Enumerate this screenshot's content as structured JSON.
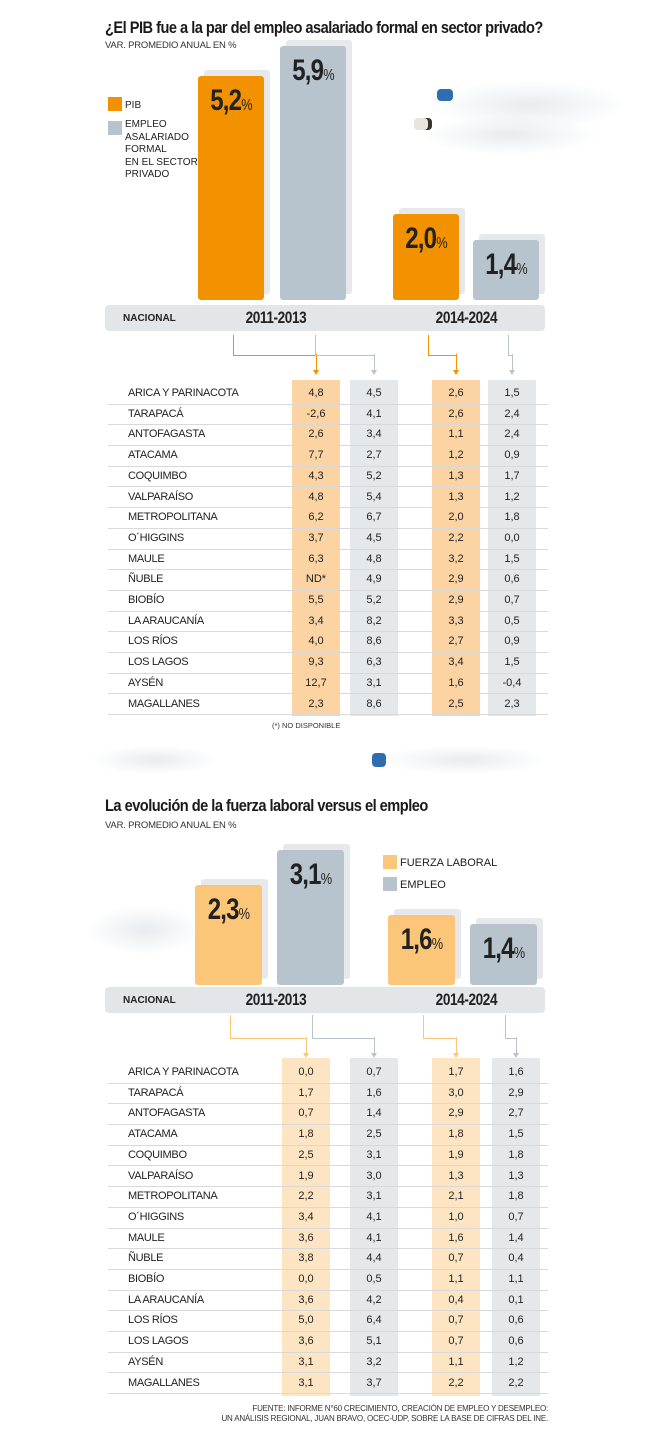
{
  "chart_data": [
    {
      "type": "bar",
      "title": "¿El PIB  fue a la par del empleo asalariado formal en sector privado?",
      "subtitle": "VAR. PROMEDIO ANUAL EN %",
      "national_label": "NACIONAL",
      "categories": [
        "2011-2013",
        "2014-2024"
      ],
      "series": [
        {
          "name": "PIB",
          "color": "#f39200",
          "band_color": "#fcd3a3",
          "values": [
            5.2,
            2.0
          ],
          "labels": [
            "5,2",
            "2,0"
          ]
        },
        {
          "name": "EMPLEO ASALARIADO FORMAL EN EL SECTOR PRIVADO",
          "color": "#b8c4cd",
          "band_color": "#e4e8eb",
          "values": [
            5.9,
            1.4
          ],
          "labels": [
            "5,9",
            "1,4"
          ]
        }
      ],
      "legend_lines": [
        "EMPLEO",
        "ASALARIADO",
        "FORMAL",
        "EN EL SECTOR",
        "PRIVADO"
      ],
      "pct_symbol": "%",
      "table": {
        "regions": [
          "ARICA Y PARINACOTA",
          "TARAPACÁ",
          "ANTOFAGASTA",
          "ATACAMA",
          "COQUIMBO",
          "VALPARAÍSO",
          "METROPOLITANA",
          "O´HIGGINS",
          "MAULE",
          "ÑUBLE",
          "BIOBÍO",
          "LA ARAUCANÍA",
          "LOS RÍOS",
          "LOS LAGOS",
          "AYSÉN",
          "MAGALLANES"
        ],
        "rows": [
          [
            "4,8",
            "4,5",
            "2,6",
            "1,5"
          ],
          [
            "-2,6",
            "4,1",
            "2,6",
            "2,4"
          ],
          [
            "2,6",
            "3,4",
            "1,1",
            "2,4"
          ],
          [
            "7,7",
            "2,7",
            "1,2",
            "0,9"
          ],
          [
            "4,3",
            "5,2",
            "1,3",
            "1,7"
          ],
          [
            "4,8",
            "5,4",
            "1,3",
            "1,2"
          ],
          [
            "6,2",
            "6,7",
            "2,0",
            "1,8"
          ],
          [
            "3,7",
            "4,5",
            "2,2",
            "0,0"
          ],
          [
            "6,3",
            "4,8",
            "3,2",
            "1,5"
          ],
          [
            "ND*",
            "4,9",
            "2,9",
            "0,6"
          ],
          [
            "5,5",
            "5,2",
            "2,9",
            "0,7"
          ],
          [
            "3,4",
            "8,2",
            "3,3",
            "0,5"
          ],
          [
            "4,0",
            "8,6",
            "2,7",
            "0,9"
          ],
          [
            "9,3",
            "6,3",
            "3,4",
            "1,5"
          ],
          [
            "12,7",
            "3,1",
            "1,6",
            "-0,4"
          ],
          [
            "2,3",
            "8,6",
            "2,5",
            "2,3"
          ]
        ]
      },
      "note": "(*) NO DISPONIBLE"
    },
    {
      "type": "bar",
      "title": "La evolución de la fuerza laboral versus el empleo",
      "subtitle": "VAR. PROMEDIO ANUAL EN %",
      "national_label": "NACIONAL",
      "categories": [
        "2011-2013",
        "2014-2024"
      ],
      "series": [
        {
          "name": "FUERZA LABORAL",
          "color": "#fbc677",
          "band_color": "#fde5c3",
          "values": [
            2.3,
            1.6
          ],
          "labels": [
            "2,3",
            "1,6"
          ]
        },
        {
          "name": "EMPLEO",
          "color": "#b8c4cd",
          "band_color": "#e4e8eb",
          "values": [
            3.1,
            1.4
          ],
          "labels": [
            "3,1",
            "1,4"
          ]
        }
      ],
      "pct_symbol": "%",
      "table": {
        "regions": [
          "ARICA Y PARINACOTA",
          "TARAPACÁ",
          "ANTOFAGASTA",
          "ATACAMA",
          "COQUIMBO",
          "VALPARAÍSO",
          "METROPOLITANA",
          "O´HIGGINS",
          "MAULE",
          "ÑUBLE",
          "BIOBÍO",
          "LA ARAUCANÍA",
          "LOS RÍOS",
          "LOS LAGOS",
          "AYSÉN",
          "MAGALLANES"
        ],
        "rows": [
          [
            "0,0",
            "0,7",
            "1,7",
            "1,6"
          ],
          [
            "1,7",
            "1,6",
            "3,0",
            "2,9"
          ],
          [
            "0,7",
            "1,4",
            "2,9",
            "2,7"
          ],
          [
            "1,8",
            "2,5",
            "1,8",
            "1,5"
          ],
          [
            "2,5",
            "3,1",
            "1,9",
            "1,8"
          ],
          [
            "1,9",
            "3,0",
            "1,3",
            "1,3"
          ],
          [
            "2,2",
            "3,1",
            "2,1",
            "1,8"
          ],
          [
            "3,4",
            "4,1",
            "1,0",
            "0,7"
          ],
          [
            "3,6",
            "4,1",
            "1,6",
            "1,4"
          ],
          [
            "3,8",
            "4,4",
            "0,7",
            "0,4"
          ],
          [
            "0,0",
            "0,5",
            "1,1",
            "1,1"
          ],
          [
            "3,6",
            "4,2",
            "0,4",
            "0,1"
          ],
          [
            "5,0",
            "6,4",
            "0,7",
            "0,6"
          ],
          [
            "3,6",
            "5,1",
            "0,7",
            "0,6"
          ],
          [
            "3,1",
            "3,2",
            "1,1",
            "1,2"
          ],
          [
            "3,1",
            "3,7",
            "2,2",
            "2,2"
          ]
        ]
      }
    }
  ],
  "footer": {
    "line1": "FUENTE: INFORME N°60 CRECIMIENTO, CREACIÓN DE EMPLEO Y DESEMPLEO:",
    "line2": "UN ANÁLISIS REGIONAL, JUAN BRAVO, OCEC-UDP, SOBRE LA BASE DE CIFRAS DEL INE."
  }
}
